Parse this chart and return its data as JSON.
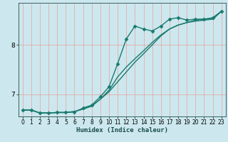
{
  "title": "",
  "xlabel": "Humidex (Indice chaleur)",
  "ylabel": "",
  "bg_color": "#cce8ee",
  "grid_color": "#e8a0a0",
  "line_color": "#1a7a6e",
  "xlim": [
    -0.5,
    23.5
  ],
  "ylim": [
    6.55,
    8.85
  ],
  "yticks": [
    7,
    8
  ],
  "xticks": [
    0,
    1,
    2,
    3,
    4,
    5,
    6,
    7,
    8,
    9,
    10,
    11,
    12,
    13,
    14,
    15,
    16,
    17,
    18,
    19,
    20,
    21,
    22,
    23
  ],
  "series": [
    {
      "x": [
        0,
        1,
        2,
        3,
        4,
        5,
        6,
        7,
        8,
        9,
        10,
        11,
        12,
        13,
        14,
        15,
        16,
        17,
        18,
        19,
        20,
        21,
        22,
        23
      ],
      "y": [
        6.68,
        6.68,
        6.62,
        6.62,
        6.63,
        6.63,
        6.64,
        6.72,
        6.78,
        6.95,
        7.15,
        7.62,
        8.12,
        8.38,
        8.32,
        8.28,
        8.38,
        8.52,
        8.55,
        8.5,
        8.52,
        8.52,
        8.55,
        8.68
      ],
      "marker": "D",
      "markersize": 2.5,
      "linewidth": 1.0
    },
    {
      "x": [
        0,
        1,
        2,
        3,
        4,
        5,
        6,
        7,
        8,
        9,
        10,
        11,
        12,
        13,
        14,
        15,
        16,
        17,
        18,
        19,
        20,
        21,
        22,
        23
      ],
      "y": [
        6.68,
        6.68,
        6.62,
        6.62,
        6.63,
        6.63,
        6.65,
        6.7,
        6.76,
        6.9,
        7.05,
        7.25,
        7.45,
        7.65,
        7.82,
        8.0,
        8.18,
        8.32,
        8.4,
        8.45,
        8.48,
        8.5,
        8.52,
        8.68
      ],
      "marker": null,
      "markersize": 0,
      "linewidth": 1.0
    },
    {
      "x": [
        0,
        1,
        2,
        3,
        4,
        5,
        6,
        7,
        8,
        9,
        10,
        11,
        12,
        13,
        14,
        15,
        16,
        17,
        18,
        19,
        20,
        21,
        22,
        23
      ],
      "y": [
        6.68,
        6.68,
        6.62,
        6.62,
        6.63,
        6.63,
        6.65,
        6.7,
        6.76,
        6.9,
        7.08,
        7.35,
        7.55,
        7.72,
        7.88,
        8.05,
        8.2,
        8.32,
        8.4,
        8.45,
        8.5,
        8.52,
        8.52,
        8.68
      ],
      "marker": null,
      "markersize": 0,
      "linewidth": 1.0
    }
  ]
}
